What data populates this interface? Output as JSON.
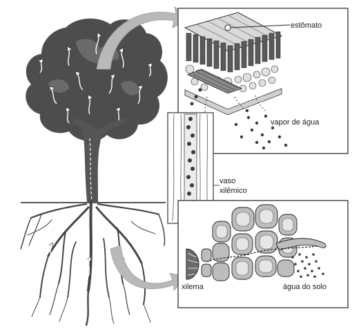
{
  "labels": {
    "stomata": "estômato",
    "water_vapor": "vapor de água",
    "vessel_line1": "vaso",
    "vessel_line2": "xilêmico",
    "xylem": "xilema",
    "soil_water": "água do solo"
  },
  "colors": {
    "ink": "#1a1a1a",
    "canopy": "#4d4d4d",
    "canopy_light": "#777777",
    "panel_border": "#333333",
    "arrow_gray": "#b9b9b9",
    "cell_fill": "#bdbdbd",
    "cell_inner": "#e6e6e6",
    "dot": "#3a3a3a"
  }
}
